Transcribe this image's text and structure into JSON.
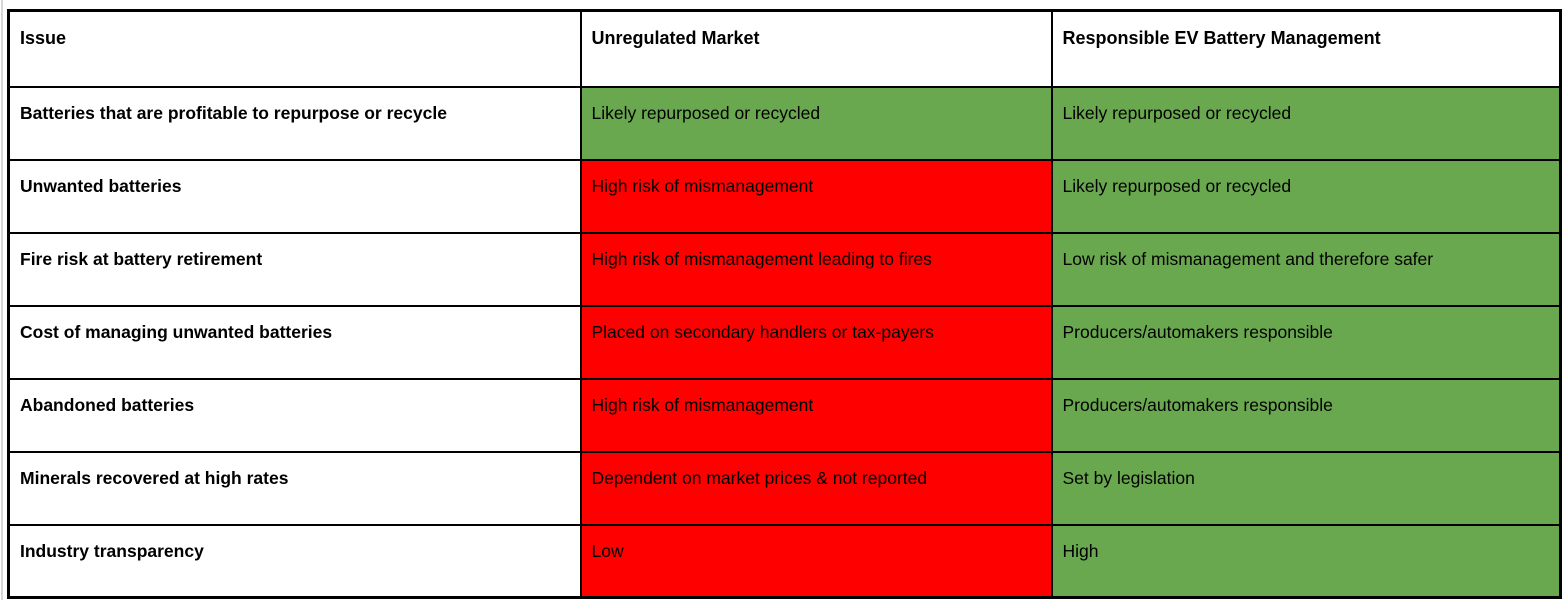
{
  "table": {
    "header": {
      "issue": "Issue",
      "unregulated": "Unregulated Market",
      "responsible": "Responsible EV Battery Management"
    },
    "rows": [
      {
        "issue": "Batteries that are profitable to repurpose or recycle",
        "unregulated": "Likely repurposed or recycled",
        "unregulated_status": "good",
        "responsible": "Likely repurposed or recycled",
        "responsible_status": "good"
      },
      {
        "issue": "Unwanted batteries",
        "unregulated": "High risk of mismanagement",
        "unregulated_status": "bad",
        "responsible": "Likely repurposed or recycled",
        "responsible_status": "good"
      },
      {
        "issue": "Fire risk at battery retirement",
        "unregulated": "High risk of mismanagement leading to fires",
        "unregulated_status": "bad",
        "responsible": "Low risk of mismanagement and therefore safer",
        "responsible_status": "good"
      },
      {
        "issue": "Cost of managing unwanted batteries",
        "unregulated": "Placed on secondary handlers or tax-payers",
        "unregulated_status": "bad",
        "responsible": "Producers/automakers responsible",
        "responsible_status": "good"
      },
      {
        "issue": "Abandoned batteries",
        "unregulated": "High risk of mismanagement",
        "unregulated_status": "bad",
        "responsible": "Producers/automakers responsible",
        "responsible_status": "good"
      },
      {
        "issue": "Minerals recovered at high rates",
        "unregulated": "Dependent on market prices & not reported",
        "unregulated_status": "bad",
        "responsible": "Set by legislation",
        "responsible_status": "good"
      },
      {
        "issue": "Industry transparency",
        "unregulated": "Low",
        "unregulated_status": "bad",
        "responsible": "High",
        "responsible_status": "good"
      }
    ],
    "colors": {
      "positive_green": "#69a84f",
      "negative_red": "#fe0000",
      "border_black": "#000000",
      "text_black": "#000000"
    }
  }
}
